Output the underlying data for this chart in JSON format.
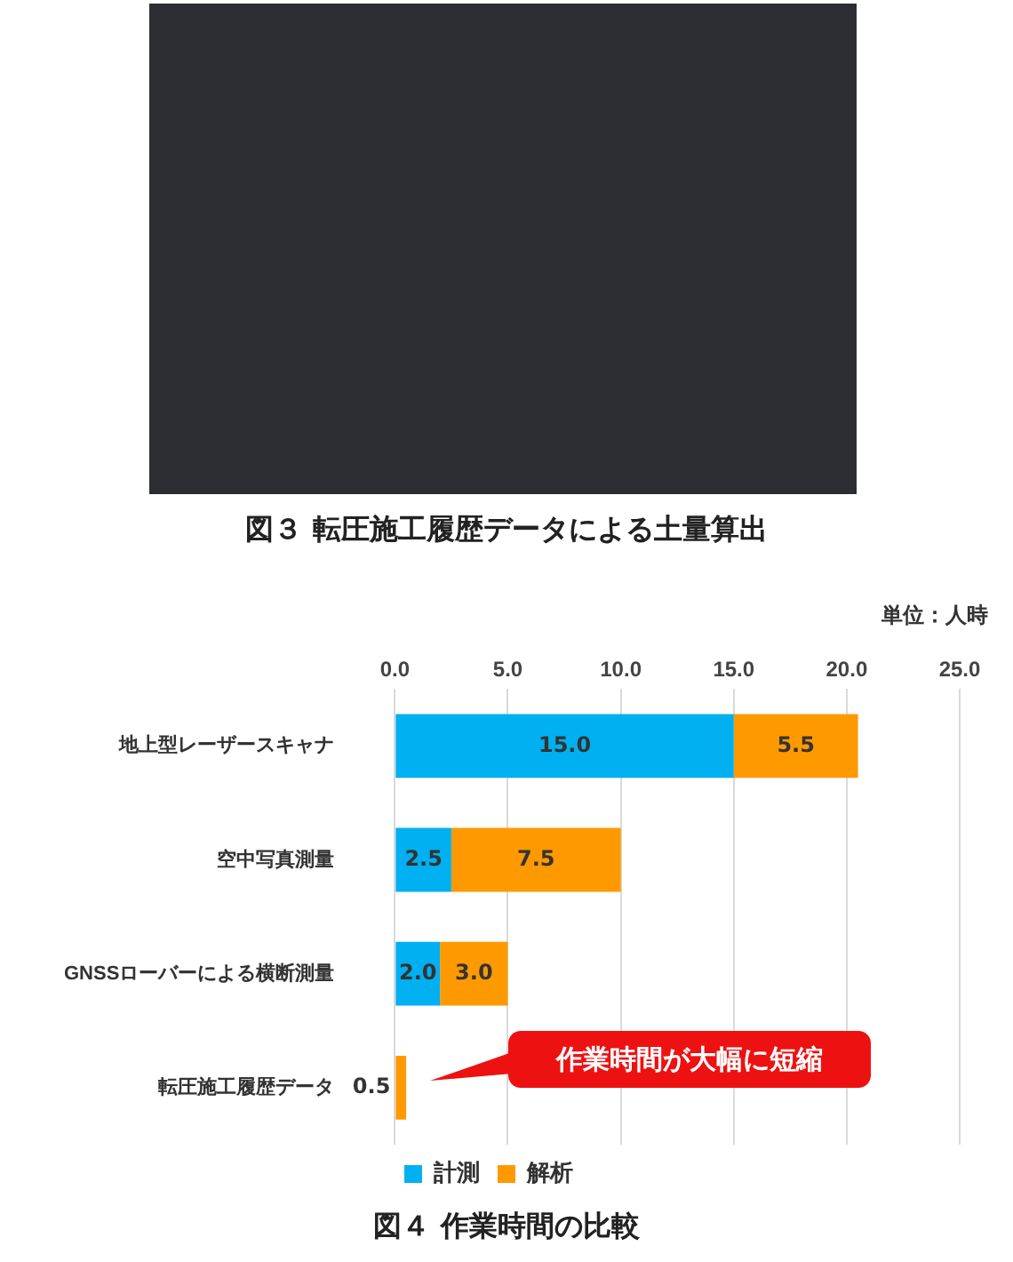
{
  "chart_data": {
    "type": "bar",
    "orientation": "horizontal",
    "stacked": true,
    "title": "図４ 作業時間の比較",
    "xlabel": "単位：人時",
    "annotations": [
      "図３ 転圧施工履歴データによる土量算出",
      "作業時間が大幅に短縮"
    ],
    "categories": [
      "地上型レーザースキャナ",
      "空中写真測量",
      "GNSSローバーによる横断測量",
      "転圧施工履歴データ"
    ],
    "series": [
      {
        "name": "計測",
        "color": "#00b0f0",
        "values": [
          15,
          2.5,
          2,
          null
        ],
        "value_labels": [
          "15.0",
          "2.5",
          "2.0",
          null
        ]
      },
      {
        "name": "解析",
        "color": "#ff9900",
        "values": [
          5.5,
          7.5,
          3,
          0.5
        ],
        "value_labels": [
          "5.5",
          "7.5",
          "3.0",
          "0.5"
        ]
      }
    ],
    "xlim": [
      0,
      25
    ],
    "xticks": [
      {
        "value": 0,
        "label": "0.0"
      },
      {
        "value": 5,
        "label": "5.0"
      },
      {
        "value": 10,
        "label": "10.0"
      },
      {
        "value": 15,
        "label": "15.0"
      },
      {
        "value": 20,
        "label": "20.0"
      },
      {
        "value": 25,
        "label": "25.0"
      }
    ],
    "grid": "x",
    "legend": "bottom"
  }
}
